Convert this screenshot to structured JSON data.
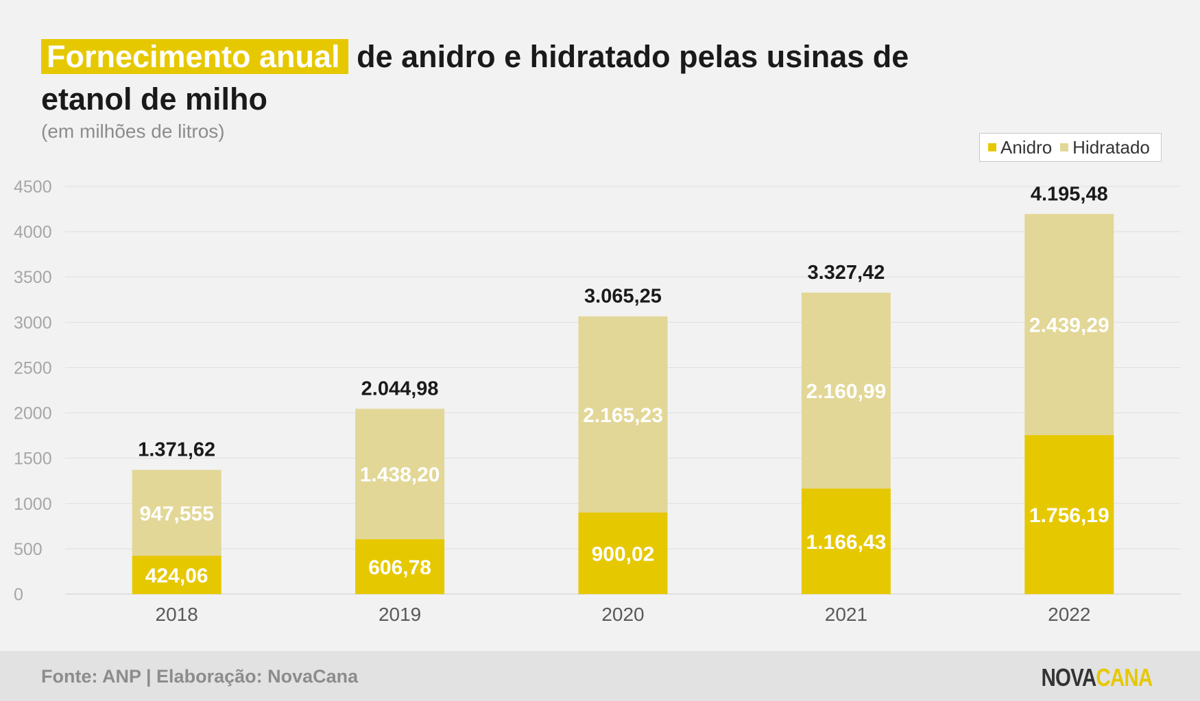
{
  "header": {
    "title_highlight": "Fornecimento anual",
    "title_rest": "de anidro e hidratado pelas usinas de etanol de milho",
    "subtitle": "(em milhões de litros)"
  },
  "legend": {
    "items": [
      {
        "label": "Anidro",
        "color": "#e6c800"
      },
      {
        "label": "Hidratado",
        "color": "#e2d797"
      }
    ]
  },
  "footer": {
    "source": "Fonte: ANP | Elaboração: NovaCana",
    "logo_part1": "NOVA",
    "logo_part2": "CANA"
  },
  "chart_data": {
    "type": "bar",
    "stacked": true,
    "categories": [
      "2018",
      "2019",
      "2020",
      "2021",
      "2022"
    ],
    "series": [
      {
        "name": "Anidro",
        "color": "#e6c800",
        "values": [
          424.06,
          606.78,
          900.02,
          1166.43,
          1756.19
        ],
        "labels": [
          "424,06",
          "606,78",
          "900,02",
          "1.166,43",
          "1.756,19"
        ]
      },
      {
        "name": "Hidratado",
        "color": "#e2d797",
        "values": [
          947.555,
          1438.2,
          2165.23,
          2160.99,
          2439.29
        ],
        "labels": [
          "947,555",
          "1.438,20",
          "2.165,23",
          "2.160,99",
          "2.439,29"
        ]
      }
    ],
    "totals": [
      1371.62,
      2044.98,
      3065.25,
      3327.42,
      4195.48
    ],
    "total_labels": [
      "1.371,62",
      "2.044,98",
      "3.065,25",
      "3.327,42",
      "4.195,48"
    ],
    "ylim": [
      0,
      4500
    ],
    "yticks": [
      "0",
      "500",
      "1000",
      "1500",
      "2000",
      "2500",
      "3000",
      "3500",
      "4000",
      "4500"
    ],
    "grid": true,
    "legend_position": "top-right"
  }
}
